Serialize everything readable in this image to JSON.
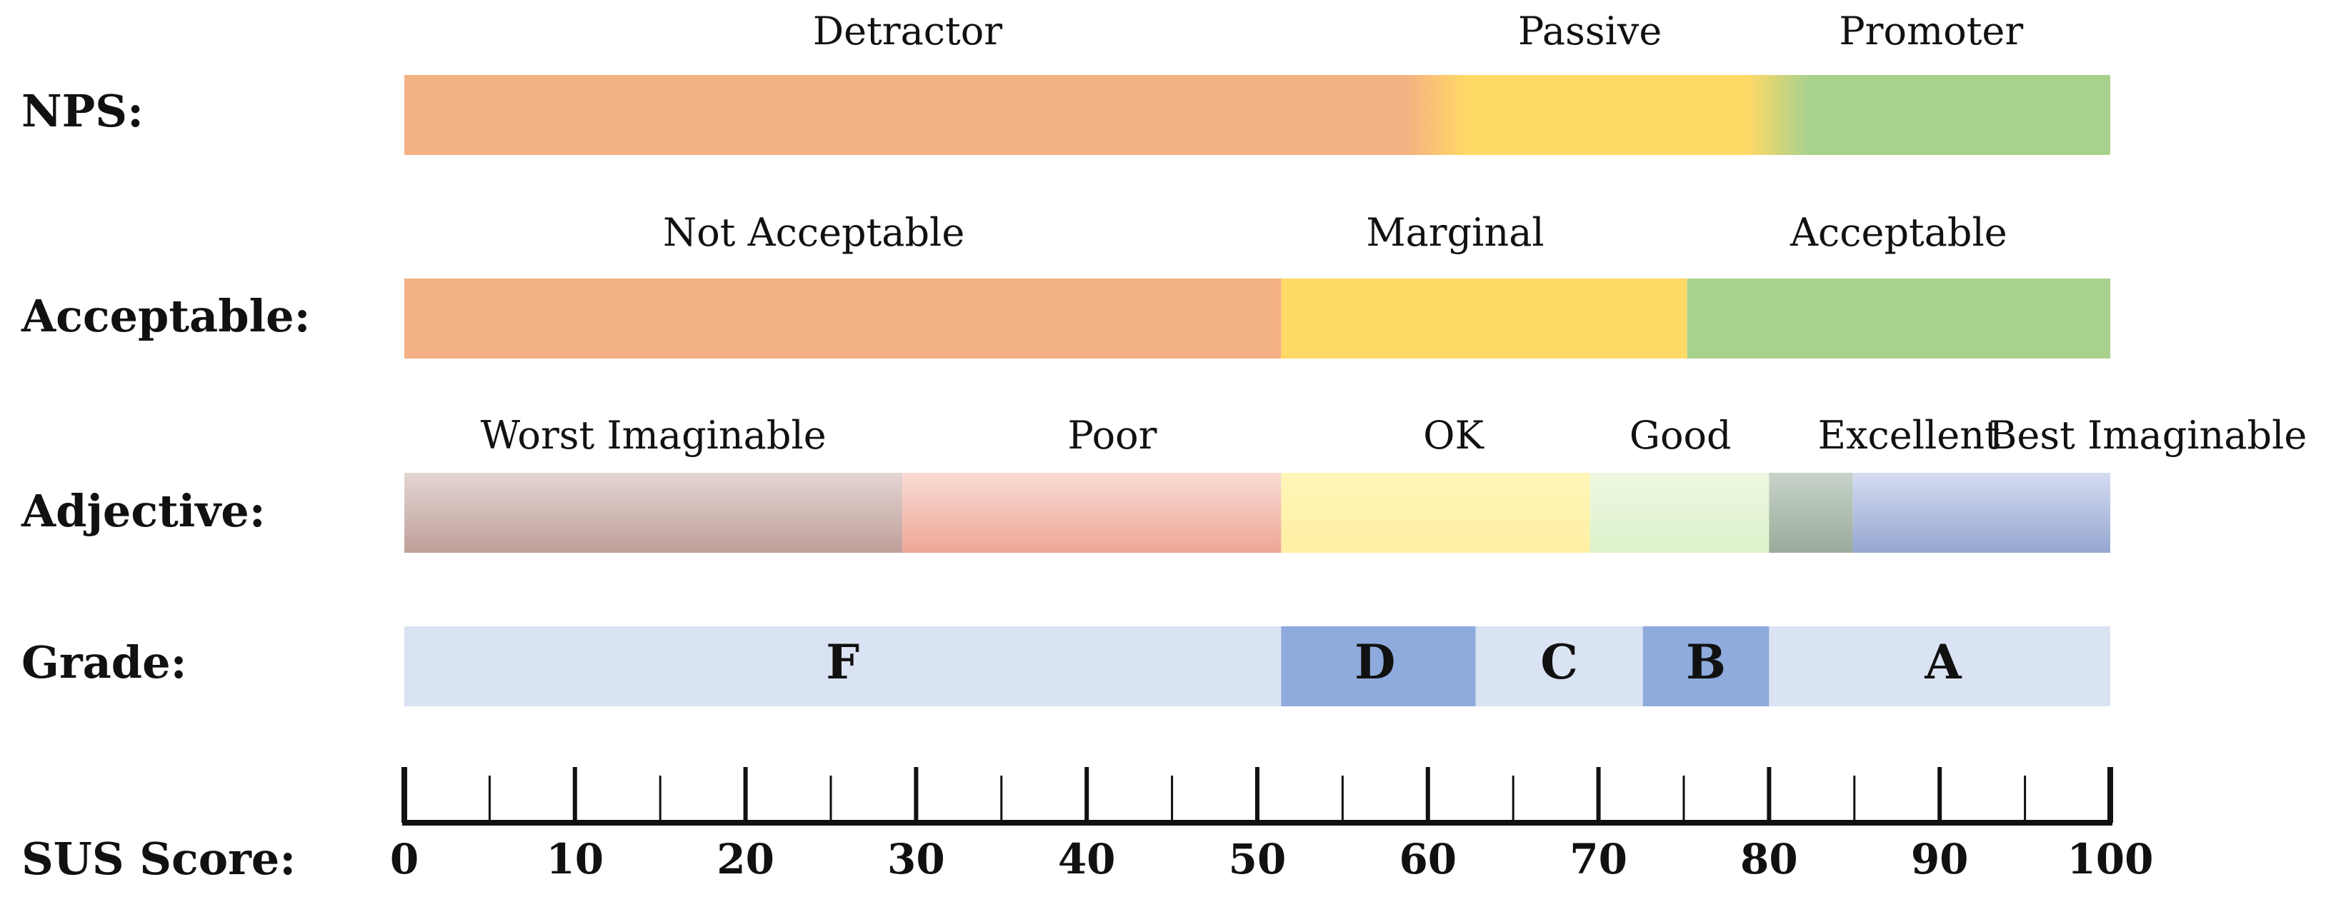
{
  "chart_data": {
    "type": "bar",
    "title": "",
    "xlabel": "SUS Score:",
    "xlim": [
      0,
      100
    ],
    "x_ticks": [
      0,
      10,
      20,
      30,
      40,
      50,
      60,
      70,
      80,
      90,
      100
    ],
    "minor_tick_step": 5,
    "rows": [
      {
        "label": "NPS:",
        "style": "blended",
        "segments": [
          {
            "name": "Detractor",
            "start": 0,
            "end": 60.5,
            "color": "#F4B183"
          },
          {
            "name": "Passive",
            "start": 60.5,
            "end": 80.5,
            "color": "#FFD966"
          },
          {
            "name": "Promoter",
            "start": 80.5,
            "end": 100,
            "color": "#A9D18E"
          }
        ],
        "label_centers": [
          29.5,
          69.5,
          89.5
        ]
      },
      {
        "label": "Acceptable:",
        "style": "solid",
        "segments": [
          {
            "name": "Not Acceptable",
            "start": 0,
            "end": 51.4,
            "color": "#F4B183"
          },
          {
            "name": "Marginal",
            "start": 51.4,
            "end": 75.2,
            "color": "#FFD966"
          },
          {
            "name": "Acceptable",
            "start": 75.2,
            "end": 100,
            "color": "#A9D18E"
          }
        ],
        "label_centers": [
          24,
          61.6,
          87.6
        ]
      },
      {
        "label": "Adjective:",
        "style": "gradient",
        "segments": [
          {
            "name": "Worst Imaginable",
            "start": 0,
            "end": 29.2,
            "color_top": "#E3D5D3",
            "color_bottom": "#BF9F99"
          },
          {
            "name": "Poor",
            "start": 29.2,
            "end": 51.4,
            "color_top": "#F8DBD4",
            "color_bottom": "#EEA797"
          },
          {
            "name": "OK",
            "start": 51.4,
            "end": 69.5,
            "color_top": "#FFF5B7",
            "color_bottom": "#FFEFA4"
          },
          {
            "name": "Good",
            "start": 69.5,
            "end": 80,
            "color_top": "#EDF7E0",
            "color_bottom": "#DCF2CB"
          },
          {
            "name": "Excellent",
            "start": 80,
            "end": 84.9,
            "color_top": "#C7D3C9",
            "color_bottom": "#9BAB9A"
          },
          {
            "name": "Best Imaginable",
            "start": 84.9,
            "end": 100,
            "color_top": "#D4DCF0",
            "color_bottom": "#96A6D1"
          }
        ],
        "label_centers": [
          14.6,
          41.5,
          61.5,
          74.8,
          88.2,
          102.2
        ]
      },
      {
        "label": "Grade:",
        "style": "solid",
        "segments": [
          {
            "name": "F",
            "start": 0,
            "end": 51.4,
            "color": "#DAE3F3"
          },
          {
            "name": "D",
            "start": 51.4,
            "end": 62.8,
            "color": "#8FAADC"
          },
          {
            "name": "C",
            "start": 62.8,
            "end": 72.6,
            "color": "#DAE3F3"
          },
          {
            "name": "B",
            "start": 72.6,
            "end": 80,
            "color": "#8FAADC"
          },
          {
            "name": "A",
            "start": 80,
            "end": 100,
            "color": "#DAE3F3"
          }
        ],
        "label_centers": [
          25.7,
          56.9,
          67.7,
          76.3,
          90.2
        ]
      }
    ]
  }
}
